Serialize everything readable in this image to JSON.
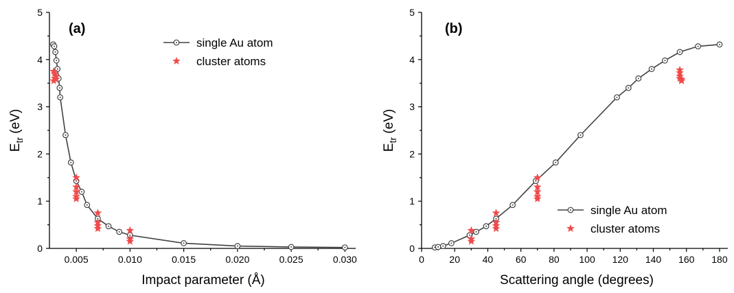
{
  "colors": {
    "line": "#404040",
    "marker_edge": "#404040",
    "cluster": "#f04a4a"
  },
  "chart_data": [
    {
      "type": "scatter",
      "panel_label": "(a)",
      "xlabel": "Impact parameter (Å)",
      "ylabel": {
        "main": "E",
        "sub": "tr",
        "unit": " (eV)"
      },
      "xlim": [
        0.0025,
        0.031
      ],
      "ylim": [
        0,
        5
      ],
      "xticks": [
        0.005,
        0.01,
        0.015,
        0.02,
        0.025,
        0.03
      ],
      "xtick_labels": [
        "0.005",
        "0.010",
        "0.015",
        "0.020",
        "0.025",
        "0.030"
      ],
      "yticks": [
        0,
        1,
        2,
        3,
        4,
        5
      ],
      "ytick_labels": [
        "0",
        "1",
        "2",
        "3",
        "4",
        "5"
      ],
      "legend_position": "top-right",
      "series": [
        {
          "name": "single Au atom",
          "style": "line-open-circle",
          "x": [
            0.00285,
            0.00295,
            0.00305,
            0.00315,
            0.00325,
            0.00335,
            0.00345,
            0.0035,
            0.004,
            0.0045,
            0.005,
            0.0055,
            0.006,
            0.007,
            0.008,
            0.009,
            0.01,
            0.015,
            0.02,
            0.025,
            0.03
          ],
          "y": [
            4.32,
            4.28,
            4.16,
            3.98,
            3.8,
            3.6,
            3.4,
            3.2,
            2.4,
            1.82,
            1.43,
            1.2,
            0.92,
            0.63,
            0.47,
            0.35,
            0.28,
            0.11,
            0.05,
            0.03,
            0.02
          ]
        },
        {
          "name": "cluster atoms",
          "style": "star",
          "x": [
            0.0029,
            0.003,
            0.0031,
            0.003,
            0.0029,
            0.0031,
            0.005,
            0.005,
            0.005,
            0.005,
            0.005,
            0.007,
            0.007,
            0.007,
            0.007,
            0.01,
            0.01,
            0.01
          ],
          "y": [
            3.75,
            3.7,
            3.65,
            3.6,
            3.55,
            3.58,
            1.5,
            1.3,
            1.2,
            1.1,
            1.05,
            0.75,
            0.55,
            0.48,
            0.42,
            0.38,
            0.2,
            0.15
          ]
        }
      ]
    },
    {
      "type": "scatter",
      "panel_label": "(b)",
      "xlabel": "Scattering angle (degrees)",
      "ylabel": {
        "main": "E",
        "sub": "tr",
        "unit": " (eV)"
      },
      "xlim": [
        0,
        185
      ],
      "ylim": [
        0,
        5
      ],
      "xticks": [
        0,
        20,
        40,
        60,
        80,
        100,
        120,
        140,
        160,
        180
      ],
      "xtick_labels": [
        "0",
        "20",
        "40",
        "60",
        "80",
        "100",
        "120",
        "140",
        "160",
        "180"
      ],
      "yticks": [
        0,
        1,
        2,
        3,
        4,
        5
      ],
      "ytick_labels": [
        "0",
        "1",
        "2",
        "3",
        "4",
        "5"
      ],
      "legend_position": "bottom-right",
      "series": [
        {
          "name": "single Au atom",
          "style": "line-open-circle",
          "x": [
            8,
            10,
            13,
            18,
            29,
            33,
            39,
            45,
            55,
            69,
            81,
            96,
            118,
            125,
            131,
            139,
            147,
            156,
            167,
            180
          ],
          "y": [
            0.02,
            0.03,
            0.05,
            0.11,
            0.28,
            0.35,
            0.47,
            0.63,
            0.92,
            1.43,
            1.82,
            2.4,
            3.2,
            3.4,
            3.6,
            3.8,
            3.98,
            4.16,
            4.28,
            4.32
          ],
          "x_note": ""
        },
        {
          "name": "cluster atoms",
          "style": "star",
          "x": [
            30,
            30,
            30,
            45,
            45,
            45,
            45,
            70,
            70,
            70,
            70,
            70,
            156,
            156,
            156,
            156,
            157,
            157
          ],
          "y": [
            0.38,
            0.2,
            0.15,
            0.75,
            0.55,
            0.48,
            0.42,
            1.5,
            1.3,
            1.2,
            1.1,
            1.05,
            3.78,
            3.72,
            3.65,
            3.6,
            3.55,
            3.58
          ]
        }
      ]
    }
  ]
}
